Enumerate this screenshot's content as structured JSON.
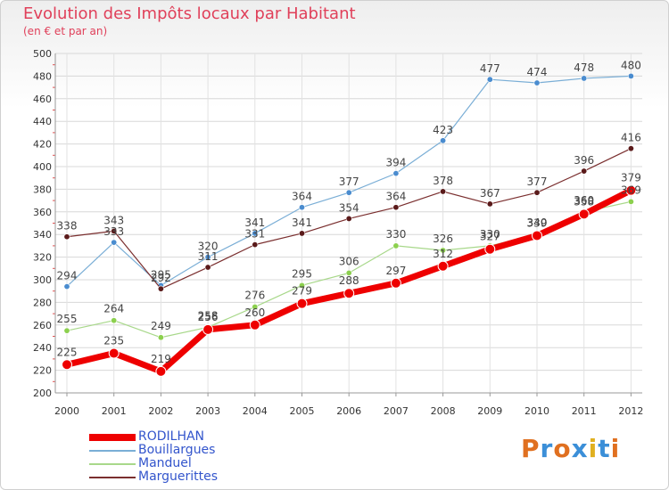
{
  "header": {
    "title": "Evolution des Impôts locaux par Habitant",
    "subtitle": "(en € et par an)"
  },
  "branding": {
    "logo_text": "Proxiti"
  },
  "chart_data": {
    "type": "line",
    "title": "Evolution des Impôts locaux par Habitant",
    "subtitle": "(en € et par an)",
    "xlabel": "",
    "ylabel": "",
    "x": [
      "2000",
      "2001",
      "2002",
      "2003",
      "2004",
      "2005",
      "2006",
      "2007",
      "2008",
      "2009",
      "2010",
      "2011",
      "2012"
    ],
    "ylim": [
      200,
      500
    ],
    "yticks": [
      200,
      220,
      240,
      260,
      280,
      300,
      320,
      340,
      360,
      380,
      400,
      420,
      440,
      460,
      480,
      500
    ],
    "grid": true,
    "legend_position": "bottom-left",
    "series": [
      {
        "name": "Bouillargues",
        "color": "#7aaed6",
        "marker": "#4a8ccf",
        "values": [
          294,
          333,
          295,
          320,
          341,
          364,
          377,
          394,
          423,
          477,
          474,
          478,
          480
        ]
      },
      {
        "name": "Marguerittes",
        "color": "#7a2e2e",
        "marker": "#5a1a1a",
        "values": [
          338,
          343,
          292,
          311,
          331,
          341,
          354,
          364,
          378,
          367,
          377,
          396,
          416
        ]
      },
      {
        "name": "Manduel",
        "color": "#a8d88a",
        "marker": "#8cd04e",
        "values": [
          255,
          264,
          249,
          258,
          276,
          295,
          306,
          330,
          326,
          330,
          340,
          360,
          369
        ]
      },
      {
        "name": "RODILHAN",
        "color": "#ee0000",
        "marker": "#ee0000",
        "values": [
          225,
          235,
          219,
          256,
          260,
          279,
          288,
          297,
          312,
          327,
          339,
          358,
          379
        ]
      }
    ]
  }
}
